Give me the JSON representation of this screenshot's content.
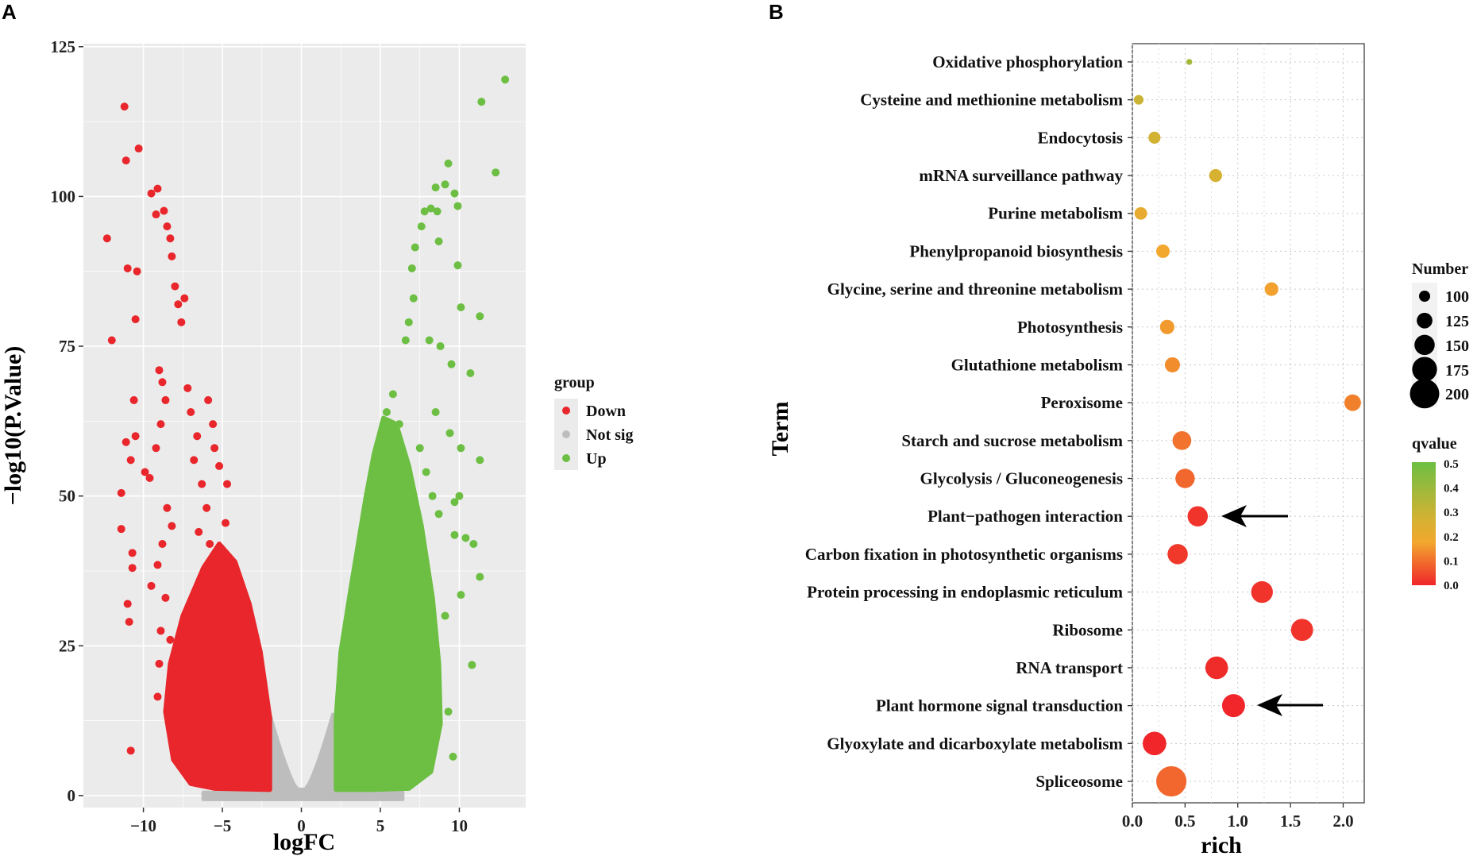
{
  "panels": {
    "a_letter": "A",
    "b_letter": "B"
  },
  "colors": {
    "panel_bg": "#ebebeb",
    "grid": "#ffffff",
    "down": "#e8262b",
    "not_sig": "#bdbdbd",
    "up": "#6cbf43",
    "q_high": "#6cbf43",
    "q_mid": "#f2a72e",
    "q_low": "#f0262b"
  },
  "chart_data": [
    {
      "id": "volcano",
      "type": "scatter",
      "title": "",
      "xlabel": "logFC",
      "ylabel": "−log10(P.Value)",
      "xlim": [
        -13.8,
        14.2
      ],
      "ylim": [
        -2,
        125.5
      ],
      "x_ticks": [
        -10,
        -5,
        0,
        5,
        10
      ],
      "x_tick_labels": [
        "−10",
        "−5",
        "0",
        "5",
        "10"
      ],
      "y_ticks": [
        0,
        25,
        50,
        75,
        100,
        125
      ],
      "y_tick_labels": [
        "0",
        "25",
        "50",
        "75",
        "100",
        "125"
      ],
      "legend": {
        "title": "group",
        "position": "right",
        "entries": [
          {
            "label": "Down",
            "color": "#e8262b"
          },
          {
            "label": "Not sig",
            "color": "#bdbdbd"
          },
          {
            "label": "Up",
            "color": "#6cbf43"
          }
        ]
      },
      "series": [
        {
          "name": "Down",
          "color": "#e8262b",
          "points": [
            [
              -12.3,
              93
            ],
            [
              -12.0,
              76
            ],
            [
              -11.2,
              115
            ],
            [
              -11.1,
              106
            ],
            [
              -11.0,
              88
            ],
            [
              -10.3,
              108
            ],
            [
              -10.4,
              87.5
            ],
            [
              -10.5,
              79.5
            ],
            [
              -9.5,
              100.5
            ],
            [
              -9.1,
              101.3
            ],
            [
              -9.2,
              97
            ],
            [
              -8.7,
              97.6
            ],
            [
              -8.5,
              95
            ],
            [
              -8.3,
              93
            ],
            [
              -8.2,
              90
            ],
            [
              -8.0,
              85
            ],
            [
              -7.8,
              82
            ],
            [
              -7.6,
              79
            ],
            [
              -7.4,
              83
            ],
            [
              -9.0,
              71
            ],
            [
              -8.8,
              69
            ],
            [
              -8.6,
              66
            ],
            [
              -8.9,
              62
            ],
            [
              -9.2,
              58
            ],
            [
              -9.6,
              53
            ],
            [
              -9.9,
              54
            ],
            [
              -10.6,
              66
            ],
            [
              -10.5,
              60
            ],
            [
              -11.1,
              59
            ],
            [
              -10.8,
              56
            ],
            [
              -11.4,
              50.5
            ],
            [
              -11.4,
              44.5
            ],
            [
              -10.7,
              40.5
            ],
            [
              -10.7,
              38
            ],
            [
              -11.0,
              32
            ],
            [
              -10.9,
              29
            ],
            [
              -10.8,
              7.5
            ],
            [
              -8.5,
              48
            ],
            [
              -8.2,
              45
            ],
            [
              -8.8,
              42
            ],
            [
              -9.1,
              38.5
            ],
            [
              -9.5,
              35
            ],
            [
              -8.6,
              33
            ],
            [
              -8.9,
              27.5
            ],
            [
              -9.0,
              22
            ],
            [
              -9.1,
              16.5
            ],
            [
              -8.3,
              26
            ],
            [
              -7.9,
              20
            ],
            [
              -7.5,
              15
            ],
            [
              -7.8,
              11
            ],
            [
              -7.0,
              9
            ],
            [
              -6.5,
              5
            ],
            [
              -7.2,
              68
            ],
            [
              -7.0,
              64
            ],
            [
              -6.6,
              60
            ],
            [
              -6.8,
              56
            ],
            [
              -6.3,
              52
            ],
            [
              -6.0,
              48
            ],
            [
              -6.5,
              44
            ],
            [
              -5.8,
              42
            ],
            [
              -5.5,
              58
            ],
            [
              -5.2,
              55
            ],
            [
              -4.8,
              45.5
            ],
            [
              -4.7,
              52
            ],
            [
              -5.6,
              62
            ],
            [
              -5.9,
              66
            ]
          ]
        },
        {
          "name": "Up",
          "color": "#6cbf43",
          "points": [
            [
              12.9,
              119.5
            ],
            [
              11.4,
              115.8
            ],
            [
              12.3,
              104
            ],
            [
              9.3,
              105.5
            ],
            [
              9.1,
              102
            ],
            [
              9.7,
              100.5
            ],
            [
              9.9,
              98.4
            ],
            [
              8.5,
              101.5
            ],
            [
              8.6,
              97.5
            ],
            [
              8.2,
              98
            ],
            [
              7.8,
              97.5
            ],
            [
              7.6,
              95
            ],
            [
              7.2,
              91.5
            ],
            [
              8.7,
              92.5
            ],
            [
              9.9,
              88.5
            ],
            [
              7.0,
              88
            ],
            [
              7.1,
              83
            ],
            [
              10.1,
              81.5
            ],
            [
              11.3,
              80
            ],
            [
              6.8,
              79
            ],
            [
              6.6,
              76
            ],
            [
              8.1,
              76
            ],
            [
              8.8,
              75
            ],
            [
              9.5,
              72
            ],
            [
              10.7,
              70.5
            ],
            [
              8.5,
              64
            ],
            [
              9.4,
              60.5
            ],
            [
              10.1,
              58
            ],
            [
              11.3,
              56
            ],
            [
              10.0,
              50
            ],
            [
              9.7,
              49
            ],
            [
              8.7,
              47
            ],
            [
              9.7,
              43.5
            ],
            [
              10.4,
              43
            ],
            [
              10.9,
              42
            ],
            [
              11.3,
              36.5
            ],
            [
              10.1,
              33.5
            ],
            [
              9.1,
              30
            ],
            [
              8.6,
              21
            ],
            [
              10.8,
              21.8
            ],
            [
              9.3,
              14
            ],
            [
              8.2,
              11.5
            ],
            [
              8.0,
              4
            ],
            [
              9.6,
              6.5
            ],
            [
              8.4,
              9
            ],
            [
              7.4,
              12
            ],
            [
              7.0,
              17
            ],
            [
              6.6,
              23
            ],
            [
              6.9,
              28
            ],
            [
              7.3,
              33
            ],
            [
              7.7,
              38
            ],
            [
              7.1,
              43
            ],
            [
              6.8,
              48
            ],
            [
              6.4,
              52
            ],
            [
              6.0,
              56
            ],
            [
              5.5,
              60
            ],
            [
              5.4,
              64
            ],
            [
              5.8,
              67
            ],
            [
              6.2,
              62
            ],
            [
              7.5,
              58
            ],
            [
              7.9,
              54
            ],
            [
              8.3,
              50
            ],
            [
              4.4,
              48
            ],
            [
              4.6,
              44
            ],
            [
              4.9,
              40
            ],
            [
              5.2,
              36
            ]
          ]
        }
      ],
      "not_sig_envelope_logFC": [
        -2,
        2
      ],
      "not_sig_max": 13.5
    },
    {
      "id": "kegg_enrichment",
      "type": "scatter",
      "title": "",
      "xlabel": "rich",
      "ylabel": "Term",
      "xlim": [
        0,
        2.2
      ],
      "x_ticks": [
        0.0,
        0.5,
        1.0,
        1.5,
        2.0
      ],
      "x_tick_labels": [
        "0.0",
        "0.5",
        "1.0",
        "1.5",
        "2.0"
      ],
      "terms": [
        {
          "term": "Oxidative phosphorylation",
          "rich": 0.54,
          "number": 72,
          "qvalue": 0.38
        },
        {
          "term": "Cysteine and methionine metabolism",
          "rich": 0.06,
          "number": 92,
          "qvalue": 0.3
        },
        {
          "term": "Endocytosis",
          "rich": 0.21,
          "number": 105,
          "qvalue": 0.28
        },
        {
          "term": "mRNA surveillance pathway",
          "rich": 0.79,
          "number": 110,
          "qvalue": 0.27
        },
        {
          "term": "Purine metabolism",
          "rich": 0.08,
          "number": 108,
          "qvalue": 0.23
        },
        {
          "term": "Phenylpropanoid biosynthesis",
          "rich": 0.29,
          "number": 113,
          "qvalue": 0.2
        },
        {
          "term": "Glycine, serine and threonine metabolism",
          "rich": 1.32,
          "number": 114,
          "qvalue": 0.19
        },
        {
          "term": "Photosynthesis",
          "rich": 0.33,
          "number": 118,
          "qvalue": 0.18
        },
        {
          "term": "Glutathione metabolism",
          "rich": 0.38,
          "number": 122,
          "qvalue": 0.16
        },
        {
          "term": "Peroxisome",
          "rich": 2.09,
          "number": 130,
          "qvalue": 0.14
        },
        {
          "term": "Starch and sucrose metabolism",
          "rich": 0.47,
          "number": 142,
          "qvalue": 0.12
        },
        {
          "term": "Glycolysis / Gluconeogenesis",
          "rich": 0.5,
          "number": 145,
          "qvalue": 0.1
        },
        {
          "term": "Plant−pathogen interaction",
          "rich": 0.62,
          "number": 150,
          "qvalue": 0.02
        },
        {
          "term": "Carbon fixation in photosynthetic organisms",
          "rich": 0.43,
          "number": 150,
          "qvalue": 0.03
        },
        {
          "term": "Protein processing in endoplasmic reticulum",
          "rich": 1.23,
          "number": 158,
          "qvalue": 0.02
        },
        {
          "term": "Ribosome",
          "rich": 1.61,
          "number": 160,
          "qvalue": 0.02
        },
        {
          "term": "RNA transport",
          "rich": 0.8,
          "number": 163,
          "qvalue": 0.01
        },
        {
          "term": "Plant hormone signal transduction",
          "rich": 0.96,
          "number": 165,
          "qvalue": 0.0
        },
        {
          "term": "Glyoxylate and dicarboxylate metabolism",
          "rich": 0.21,
          "number": 168,
          "qvalue": 0.0
        },
        {
          "term": "Spliceosome",
          "rich": 0.37,
          "number": 205,
          "qvalue": 0.1
        }
      ],
      "highlighted_terms": [
        "Plant−pathogen interaction",
        "Plant hormone signal transduction"
      ],
      "size_legend": {
        "title": "Number",
        "labels": [
          "100",
          "125",
          "150",
          "175",
          "200"
        ],
        "values": [
          100,
          125,
          150,
          175,
          200
        ]
      },
      "color_legend": {
        "title": "qvalue",
        "tick_labels": [
          "0.5",
          "0.4",
          "0.3",
          "0.2",
          "0.1",
          "0.0"
        ],
        "range": [
          0.0,
          0.5
        ]
      }
    }
  ]
}
